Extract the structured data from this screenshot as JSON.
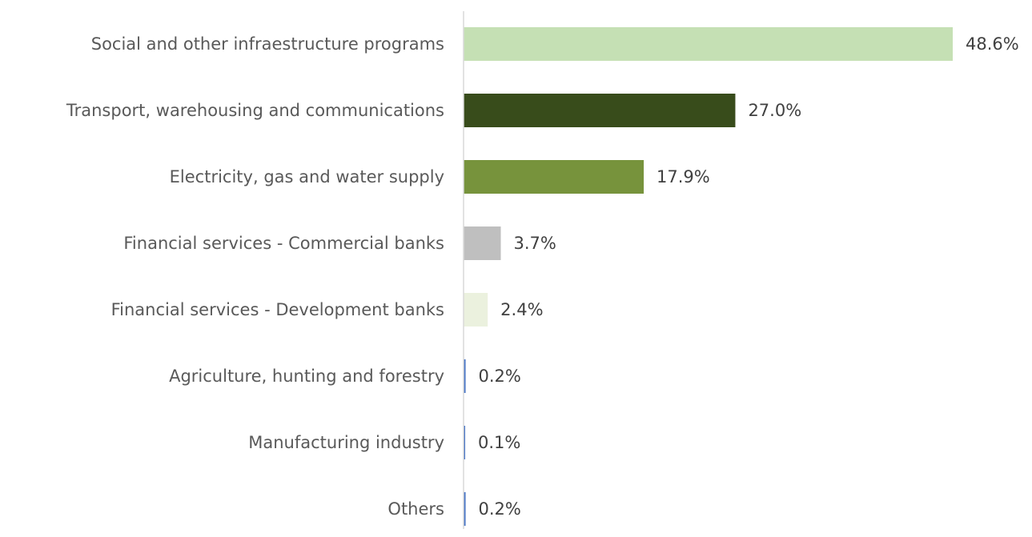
{
  "chart_data": {
    "type": "bar",
    "orientation": "horizontal",
    "title": "",
    "xlabel": "",
    "ylabel": "",
    "categories": [
      "Social and other infraestructure programs",
      "Transport, warehousing and communications",
      "Electricity, gas and water supply",
      "Financial services - Commercial banks",
      "Financial services - Development  banks",
      "Agriculture, hunting and forestry",
      "Manufacturing industry",
      "Others"
    ],
    "values": [
      48.6,
      27.0,
      17.9,
      3.7,
      2.4,
      0.2,
      0.1,
      0.2
    ],
    "value_labels": [
      "48.6%",
      "27.0%",
      "17.9%",
      "3.7%",
      "2.4%",
      "0.2%",
      "0.1%",
      "0.2%"
    ],
    "colors": [
      "#c5e0b4",
      "#384c1b",
      "#77933c",
      "#bfbfbf",
      "#ebf1de",
      "#4472c4",
      "#4472c4",
      "#4472c4"
    ],
    "xlim": [
      0,
      50
    ],
    "grid": false,
    "legend": "none"
  }
}
